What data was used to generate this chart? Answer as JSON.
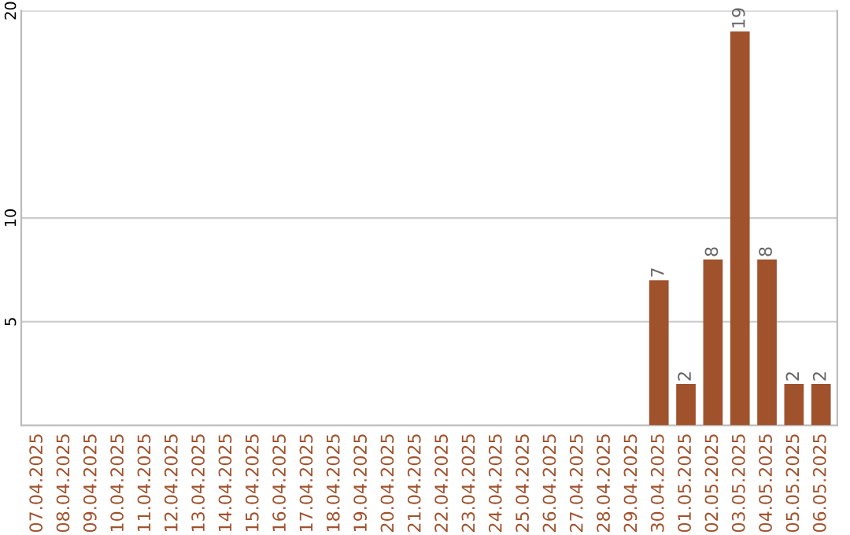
{
  "chart_data": {
    "type": "bar",
    "categories": [
      "07.04.2025",
      "08.04.2025",
      "09.04.2025",
      "10.04.2025",
      "11.04.2025",
      "12.04.2025",
      "13.04.2025",
      "14.04.2025",
      "15.04.2025",
      "16.04.2025",
      "17.04.2025",
      "18.04.2025",
      "19.04.2025",
      "20.04.2025",
      "21.04.2025",
      "22.04.2025",
      "23.04.2025",
      "24.04.2025",
      "25.04.2025",
      "26.04.2025",
      "27.04.2025",
      "28.04.2025",
      "29.04.2025",
      "30.04.2025",
      "01.05.2025",
      "02.05.2025",
      "03.05.2025",
      "04.05.2025",
      "05.05.2025",
      "06.05.2025"
    ],
    "values": [
      0,
      0,
      0,
      0,
      0,
      0,
      0,
      0,
      0,
      0,
      0,
      0,
      0,
      0,
      0,
      0,
      0,
      0,
      0,
      0,
      0,
      0,
      0,
      7,
      2,
      8,
      19,
      8,
      2,
      2
    ],
    "value_labels": [
      null,
      null,
      null,
      null,
      null,
      null,
      null,
      null,
      null,
      null,
      null,
      null,
      null,
      null,
      null,
      null,
      null,
      null,
      null,
      null,
      null,
      null,
      null,
      "7",
      "2",
      "8",
      "19",
      "8",
      "2",
      "2"
    ],
    "color": "#a0522d",
    "ylim": [
      0,
      20
    ],
    "yticks": [
      5,
      10,
      20
    ],
    "grid": "y",
    "legend": false
  }
}
